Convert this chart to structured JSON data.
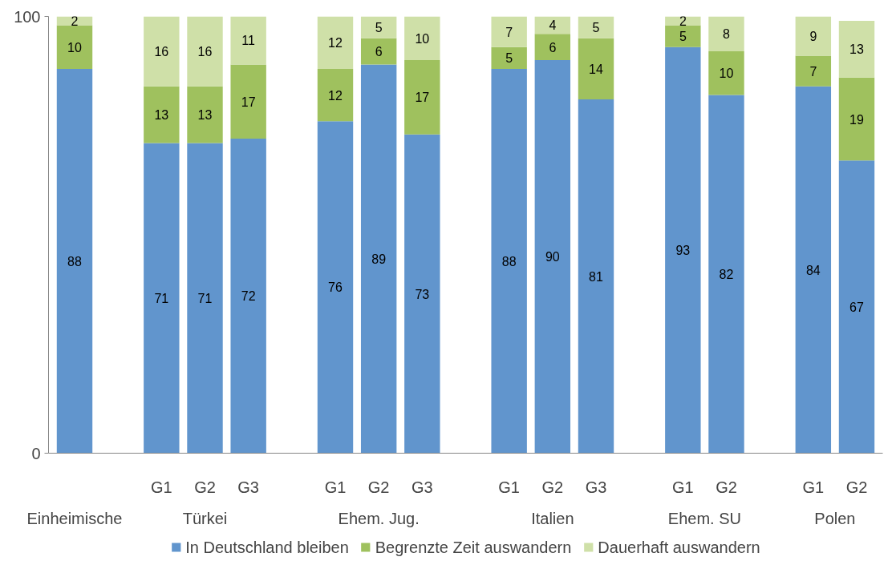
{
  "chart_data": {
    "type": "bar",
    "stacked": true,
    "categories": [
      null,
      null,
      "G1",
      "G2",
      "G3",
      null,
      "G1",
      "G2",
      "G3",
      null,
      "G1",
      "G2",
      "G3",
      null,
      "G1",
      "G2",
      null,
      "G1",
      "G2"
    ],
    "series": [
      {
        "name": "In Deutschland bleiben",
        "color": "#6195cd",
        "values": [
          88,
          null,
          71,
          71,
          72,
          null,
          76,
          89,
          73,
          null,
          88,
          90,
          81,
          null,
          93,
          82,
          null,
          84,
          67
        ]
      },
      {
        "name": "Begrenzte Zeit auswandern",
        "color": "#9fc15e",
        "values": [
          10,
          null,
          13,
          13,
          17,
          null,
          12,
          6,
          17,
          null,
          5,
          6,
          14,
          null,
          5,
          10,
          null,
          7,
          19
        ]
      },
      {
        "name": "Dauerhaft auswandern",
        "color": "#cfe0a8",
        "values": [
          2,
          null,
          16,
          16,
          11,
          null,
          12,
          5,
          10,
          null,
          7,
          4,
          5,
          null,
          2,
          8,
          null,
          9,
          13
        ]
      }
    ],
    "annotations": [
      "Einheimische",
      "Türkei",
      "Ehem. Jug.",
      "Italien",
      "Ehem. SU",
      "Polen"
    ],
    "ylim": [
      0,
      100
    ],
    "yticks": [
      0,
      100
    ],
    "grid": false,
    "legend": "bottom",
    "data_labels": true
  }
}
